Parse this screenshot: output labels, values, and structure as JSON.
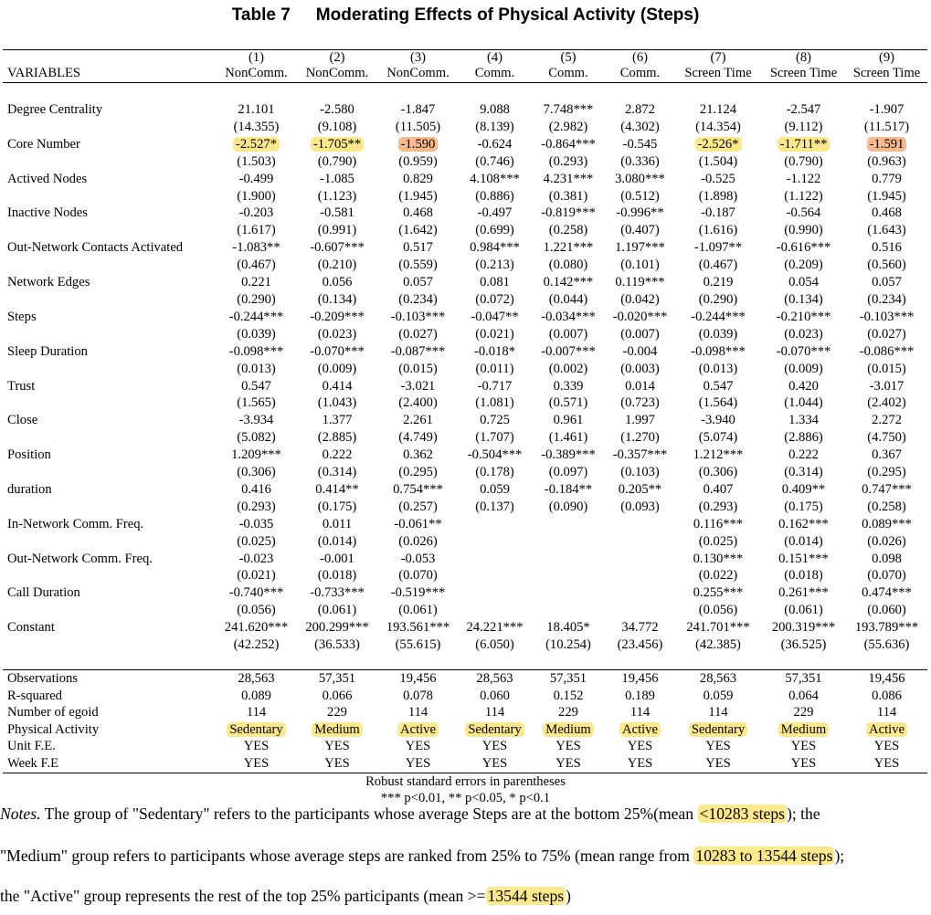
{
  "title": {
    "number": "Table 7",
    "text": "Moderating Effects of Physical Activity (Steps)"
  },
  "header": {
    "variables_label": "VARIABLES",
    "col_numbers": [
      "(1)",
      "(2)",
      "(3)",
      "(4)",
      "(5)",
      "(6)",
      "(7)",
      "(8)",
      "(9)"
    ],
    "col_names": [
      "NonComm.",
      "NonComm.",
      "NonComm.",
      "Comm.",
      "Comm.",
      "Comm.",
      "Screen Time",
      "Screen Time",
      "Screen Time"
    ]
  },
  "rows": [
    {
      "label": "Degree Centrality",
      "coef": [
        "21.101",
        "-2.580",
        "-1.847",
        "9.088",
        "7.748***",
        "2.872",
        "21.124",
        "-2.547",
        "-1.907"
      ],
      "se": [
        "(14.355)",
        "(9.108)",
        "(11.505)",
        "(8.139)",
        "(2.982)",
        "(4.302)",
        "(14.354)",
        "(9.112)",
        "(11.517)"
      ]
    },
    {
      "label": "Core Number",
      "coef": [
        "-2.527*",
        "-1.705**",
        "-1.590",
        "-0.624",
        "-0.864***",
        "-0.545",
        "-2.526*",
        "-1.711**",
        "-1.591"
      ],
      "se": [
        "(1.503)",
        "(0.790)",
        "(0.959)",
        "(0.746)",
        "(0.293)",
        "(0.336)",
        "(1.504)",
        "(0.790)",
        "(0.963)"
      ],
      "highlight": [
        "y",
        "y",
        "o",
        "",
        "",
        "",
        "y",
        "y",
        "o"
      ]
    },
    {
      "label": "Actived Nodes",
      "coef": [
        "-0.499",
        "-1.085",
        "0.829",
        "4.108***",
        "4.231***",
        "3.080***",
        "-0.525",
        "-1.122",
        "0.779"
      ],
      "se": [
        "(1.900)",
        "(1.123)",
        "(1.945)",
        "(0.886)",
        "(0.381)",
        "(0.512)",
        "(1.898)",
        "(1.122)",
        "(1.945)"
      ]
    },
    {
      "label": "Inactive Nodes",
      "coef": [
        "-0.203",
        "-0.581",
        "0.468",
        "-0.497",
        "-0.819***",
        "-0.996**",
        "-0.187",
        "-0.564",
        "0.468"
      ],
      "se": [
        "(1.617)",
        "(0.991)",
        "(1.642)",
        "(0.699)",
        "(0.258)",
        "(0.407)",
        "(1.616)",
        "(0.990)",
        "(1.643)"
      ]
    },
    {
      "label": "Out-Network Contacts Activated",
      "coef": [
        "-1.083**",
        "-0.607***",
        "0.517",
        "0.984***",
        "1.221***",
        "1.197***",
        "-1.097**",
        "-0.616***",
        "0.516"
      ],
      "se": [
        "(0.467)",
        "(0.210)",
        "(0.559)",
        "(0.213)",
        "(0.080)",
        "(0.101)",
        "(0.467)",
        "(0.209)",
        "(0.560)"
      ]
    },
    {
      "label": "Network Edges",
      "coef": [
        "0.221",
        "0.056",
        "0.057",
        "0.081",
        "0.142***",
        "0.119***",
        "0.219",
        "0.054",
        "0.057"
      ],
      "se": [
        "(0.290)",
        "(0.134)",
        "(0.234)",
        "(0.072)",
        "(0.044)",
        "(0.042)",
        "(0.290)",
        "(0.134)",
        "(0.234)"
      ]
    },
    {
      "label": "Steps",
      "coef": [
        "-0.244***",
        "-0.209***",
        "-0.103***",
        "-0.047**",
        "-0.034***",
        "-0.020***",
        "-0.244***",
        "-0.210***",
        "-0.103***"
      ],
      "se": [
        "(0.039)",
        "(0.023)",
        "(0.027)",
        "(0.021)",
        "(0.007)",
        "(0.007)",
        "(0.039)",
        "(0.023)",
        "(0.027)"
      ]
    },
    {
      "label": "Sleep Duration",
      "coef": [
        "-0.098***",
        "-0.070***",
        "-0.087***",
        "-0.018*",
        "-0.007***",
        "-0.004",
        "-0.098***",
        "-0.070***",
        "-0.086***"
      ],
      "se": [
        "(0.013)",
        "(0.009)",
        "(0.015)",
        "(0.011)",
        "(0.002)",
        "(0.003)",
        "(0.013)",
        "(0.009)",
        "(0.015)"
      ]
    },
    {
      "label": "Trust",
      "coef": [
        "0.547",
        "0.414",
        "-3.021",
        "-0.717",
        "0.339",
        "0.014",
        "0.547",
        "0.420",
        "-3.017"
      ],
      "se": [
        "(1.565)",
        "(1.043)",
        "(2.400)",
        "(1.081)",
        "(0.571)",
        "(0.723)",
        "(1.564)",
        "(1.044)",
        "(2.402)"
      ]
    },
    {
      "label": "Close",
      "coef": [
        "-3.934",
        "1.377",
        "2.261",
        "0.725",
        "0.961",
        "1.997",
        "-3.940",
        "1.334",
        "2.272"
      ],
      "se": [
        "(5.082)",
        "(2.885)",
        "(4.749)",
        "(1.707)",
        "(1.461)",
        "(1.270)",
        "(5.074)",
        "(2.886)",
        "(4.750)"
      ]
    },
    {
      "label": "Position",
      "coef": [
        "1.209***",
        "0.222",
        "0.362",
        "-0.504***",
        "-0.389***",
        "-0.357***",
        "1.212***",
        "0.222",
        "0.367"
      ],
      "se": [
        "(0.306)",
        "(0.314)",
        "(0.295)",
        "(0.178)",
        "(0.097)",
        "(0.103)",
        "(0.306)",
        "(0.314)",
        "(0.295)"
      ]
    },
    {
      "label": "duration",
      "coef": [
        "0.416",
        "0.414**",
        "0.754***",
        "0.059",
        "-0.184**",
        "0.205**",
        "0.407",
        "0.409**",
        "0.747***"
      ],
      "se": [
        "(0.293)",
        "(0.175)",
        "(0.257)",
        "(0.137)",
        "(0.090)",
        "(0.093)",
        "(0.293)",
        "(0.175)",
        "(0.258)"
      ]
    },
    {
      "label": "In-Network Comm. Freq.",
      "coef": [
        "-0.035",
        "0.011",
        "-0.061**",
        "",
        "",
        "",
        "0.116***",
        "0.162***",
        "0.089***"
      ],
      "se": [
        "(0.025)",
        "(0.014)",
        "(0.026)",
        "",
        "",
        "",
        "(0.025)",
        "(0.014)",
        "(0.026)"
      ]
    },
    {
      "label": "Out-Network Comm. Freq.",
      "coef": [
        "-0.023",
        "-0.001",
        "-0.053",
        "",
        "",
        "",
        "0.130***",
        "0.151***",
        "0.098"
      ],
      "se": [
        "(0.021)",
        "(0.018)",
        "(0.070)",
        "",
        "",
        "",
        "(0.022)",
        "(0.018)",
        "(0.070)"
      ]
    },
    {
      "label": "Call Duration",
      "coef": [
        "-0.740***",
        "-0.733***",
        "-0.519***",
        "",
        "",
        "",
        "0.255***",
        "0.261***",
        "0.474***"
      ],
      "se": [
        "(0.056)",
        "(0.061)",
        "(0.061)",
        "",
        "",
        "",
        "(0.056)",
        "(0.061)",
        "(0.060)"
      ]
    },
    {
      "label": "Constant",
      "coef": [
        "241.620***",
        "200.299***",
        "193.561***",
        "24.221***",
        "18.405*",
        "34.772",
        "241.701***",
        "200.319***",
        "193.789***"
      ],
      "se": [
        "(42.252)",
        "(36.533)",
        "(55.615)",
        "(6.050)",
        "(10.254)",
        "(23.456)",
        "(42.385)",
        "(36.525)",
        "(55.636)"
      ]
    }
  ],
  "stats": [
    {
      "label": "Observations",
      "values": [
        "28,563",
        "57,351",
        "19,456",
        "28,563",
        "57,351",
        "19,456",
        "28,563",
        "57,351",
        "19,456"
      ]
    },
    {
      "label": "R-squared",
      "values": [
        "0.089",
        "0.066",
        "0.078",
        "0.060",
        "0.152",
        "0.189",
        "0.059",
        "0.064",
        "0.086"
      ]
    },
    {
      "label": "Number of egoid",
      "values": [
        "114",
        "229",
        "114",
        "114",
        "229",
        "114",
        "114",
        "229",
        "114"
      ]
    },
    {
      "label": "Physical Activity",
      "values": [
        "Sedentary",
        "Medium",
        "Active",
        "Sedentary",
        "Medium",
        "Active",
        "Sedentary",
        "Medium",
        "Active"
      ],
      "highlight": true
    },
    {
      "label": "Unit F.E.",
      "values": [
        "YES",
        "YES",
        "YES",
        "YES",
        "YES",
        "YES",
        "YES",
        "YES",
        "YES"
      ]
    },
    {
      "label": "Week F.E",
      "values": [
        "YES",
        "YES",
        "YES",
        "YES",
        "YES",
        "YES",
        "YES",
        "YES",
        "YES"
      ]
    }
  ],
  "footnotes": {
    "robust": "Robust standard errors in parentheses",
    "significance": "*** p<0.01, ** p<0.05, * p<0.1"
  },
  "notes": {
    "label": "Notes.",
    "line1_pre": " The group of \"Sedentary\" refers to the participants whose average Steps are at the bottom 25%(mean ",
    "line1_hl": "<10283 steps",
    "line1_post": "); the",
    "line2_pre": "\"Medium\" group refers to participants whose average steps are ranked from 25% to 75% (mean range from ",
    "line2_hl": "10283 to 13544 steps",
    "line2_post": ");",
    "line3_pre": "the \"Active\" group represents the rest of the top 25% participants (mean >=",
    "line3_hl": "13544 steps",
    "line3_post": ")"
  },
  "colors": {
    "highlight_yellow": "#fde88c",
    "highlight_orange": "#f8b98c"
  }
}
